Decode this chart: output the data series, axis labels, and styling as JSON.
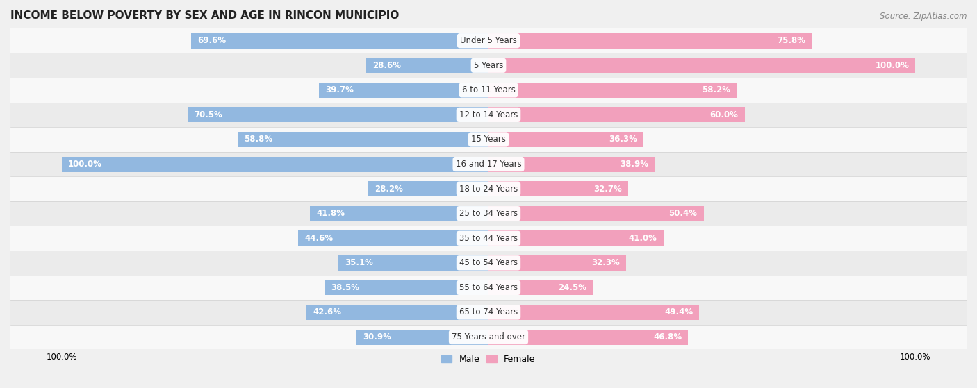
{
  "title": "INCOME BELOW POVERTY BY SEX AND AGE IN RINCON MUNICIPIO",
  "source": "Source: ZipAtlas.com",
  "categories": [
    "Under 5 Years",
    "5 Years",
    "6 to 11 Years",
    "12 to 14 Years",
    "15 Years",
    "16 and 17 Years",
    "18 to 24 Years",
    "25 to 34 Years",
    "35 to 44 Years",
    "45 to 54 Years",
    "55 to 64 Years",
    "65 to 74 Years",
    "75 Years and over"
  ],
  "male_values": [
    69.6,
    28.6,
    39.7,
    70.5,
    58.8,
    100.0,
    28.2,
    41.8,
    44.6,
    35.1,
    38.5,
    42.6,
    30.9
  ],
  "female_values": [
    75.8,
    100.0,
    58.2,
    60.0,
    36.3,
    38.9,
    32.7,
    50.4,
    41.0,
    32.3,
    24.5,
    49.4,
    46.8
  ],
  "male_color": "#92b8e0",
  "female_color": "#f2a0bc",
  "male_label_color_inbar": "#ffffff",
  "female_label_color_inbar": "#ffffff",
  "male_label_color_outside": "#555555",
  "female_label_color_outside": "#555555",
  "row_bg_odd": "#ebebeb",
  "row_bg_even": "#f8f8f8",
  "fig_bg": "#f0f0f0",
  "title_fontsize": 11,
  "label_fontsize": 8.5,
  "category_fontsize": 8.5,
  "legend_fontsize": 9,
  "source_fontsize": 8.5,
  "inbar_threshold": 12
}
